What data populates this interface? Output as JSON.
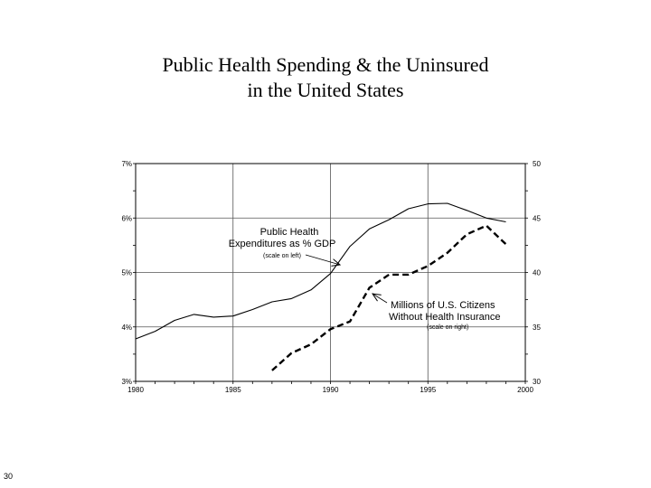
{
  "slide": {
    "page_number": "30"
  },
  "chart_data": {
    "type": "line",
    "title": "Public Health Spending & the Uninsured in the United States",
    "title_lines": [
      "Public Health Spending & the Uninsured",
      "in the United States"
    ],
    "x_ticks": [
      "1980",
      "1985",
      "1990",
      "1995",
      "2000"
    ],
    "xlim": [
      1980,
      2000
    ],
    "y_left_ticks": [
      "3%",
      "4%",
      "5%",
      "6%",
      "7%"
    ],
    "y_left_lim": [
      3,
      7
    ],
    "y_right_ticks": [
      "30",
      "35",
      "40",
      "45",
      "50"
    ],
    "y_right_lim": [
      30,
      50
    ],
    "grid": "major only",
    "series": [
      {
        "name": "Public Health Expenditures as % GDP",
        "axis": "left",
        "style": "solid",
        "x": [
          1980,
          1981,
          1982,
          1983,
          1984,
          1985,
          1986,
          1987,
          1988,
          1989,
          1990,
          1991,
          1992,
          1993,
          1994,
          1995,
          1996,
          1997,
          1998,
          1999
        ],
        "y": [
          3.78,
          3.92,
          4.12,
          4.23,
          4.18,
          4.2,
          4.32,
          4.46,
          4.52,
          4.68,
          4.98,
          5.48,
          5.8,
          5.97,
          6.17,
          6.26,
          6.27,
          6.14,
          6.0,
          5.93
        ]
      },
      {
        "name": "Millions of U.S. Citizens Without Health Insurance",
        "axis": "right",
        "style": "dashed",
        "x": [
          1987,
          1988,
          1989,
          1990,
          1991,
          1992,
          1993,
          1994,
          1995,
          1996,
          1997,
          1998,
          1999
        ],
        "y": [
          31.0,
          32.6,
          33.4,
          34.8,
          35.5,
          38.6,
          39.8,
          39.8,
          40.6,
          41.8,
          43.5,
          44.3,
          42.6
        ]
      }
    ],
    "annotations": [
      {
        "label": "Public Health",
        "label2": "Expenditures as % GDP",
        "note": "(scale on left)"
      },
      {
        "label": "Millions of U.S. Citizens",
        "label2": "Without Health Insurance",
        "note": "(scale on right)"
      }
    ]
  }
}
